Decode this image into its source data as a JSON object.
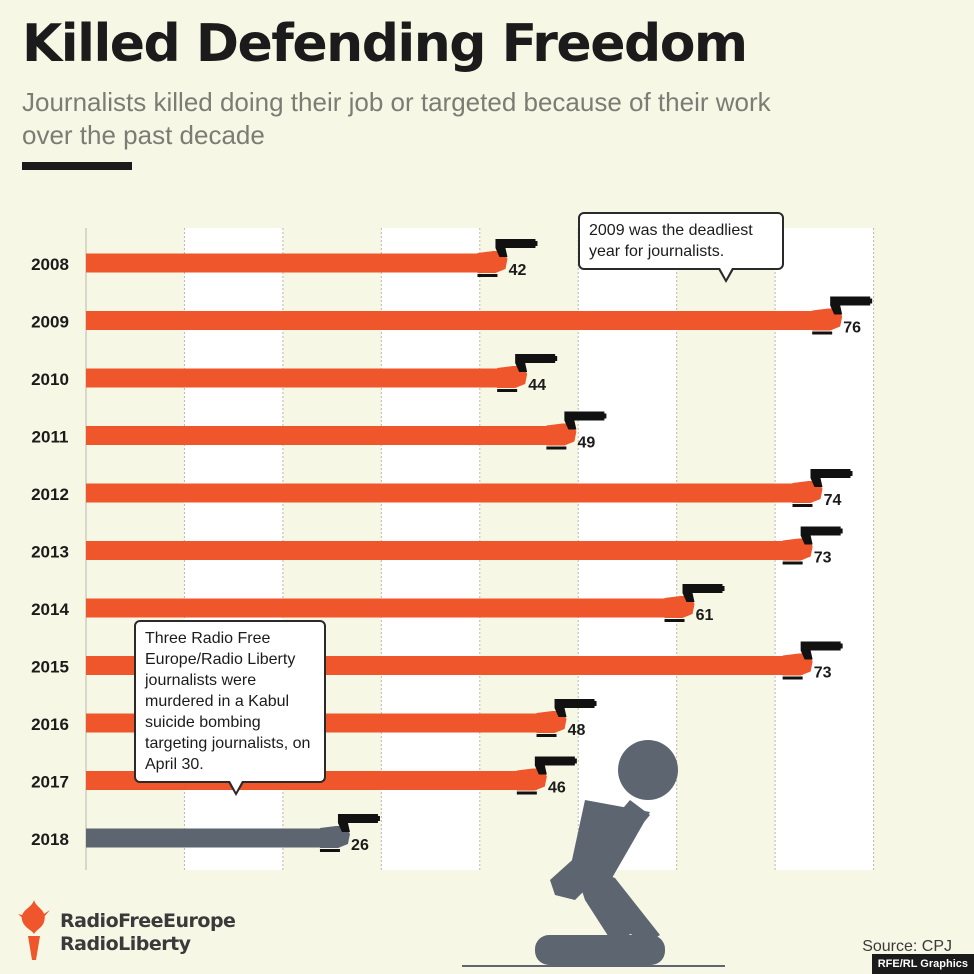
{
  "title": "Killed Defending Freedom",
  "subtitle": "Journalists killed doing their job or targeted because of their work over the past decade",
  "callouts": {
    "y2009": "2009 was the deadliest year for journalists.",
    "y2018": "Three Radio Free Europe/Radio Liberty journalists were murdered in a Kabul suicide bombing targeting journalists, on April 30."
  },
  "logo": {
    "line1": "RadioFreeEurope",
    "line2": "RadioLiberty",
    "icon": "torch-icon"
  },
  "source": "Source: CPJ",
  "credit": "RFE/RL Graphics",
  "colors": {
    "bar": "#f0562b",
    "highlight": "#5d6670",
    "background": "#f7f7e6",
    "gun": "#111111"
  },
  "chart_data": {
    "type": "bar",
    "orientation": "horizontal",
    "categories": [
      "2008",
      "2009",
      "2010",
      "2011",
      "2012",
      "2013",
      "2014",
      "2015",
      "2016",
      "2017",
      "2018"
    ],
    "values": [
      42,
      76,
      44,
      49,
      74,
      73,
      61,
      73,
      48,
      46,
      26
    ],
    "highlight_category": "2018",
    "xlim": [
      0,
      90
    ],
    "grid": "alternating-stripes",
    "xlabel": "",
    "ylabel": ""
  }
}
